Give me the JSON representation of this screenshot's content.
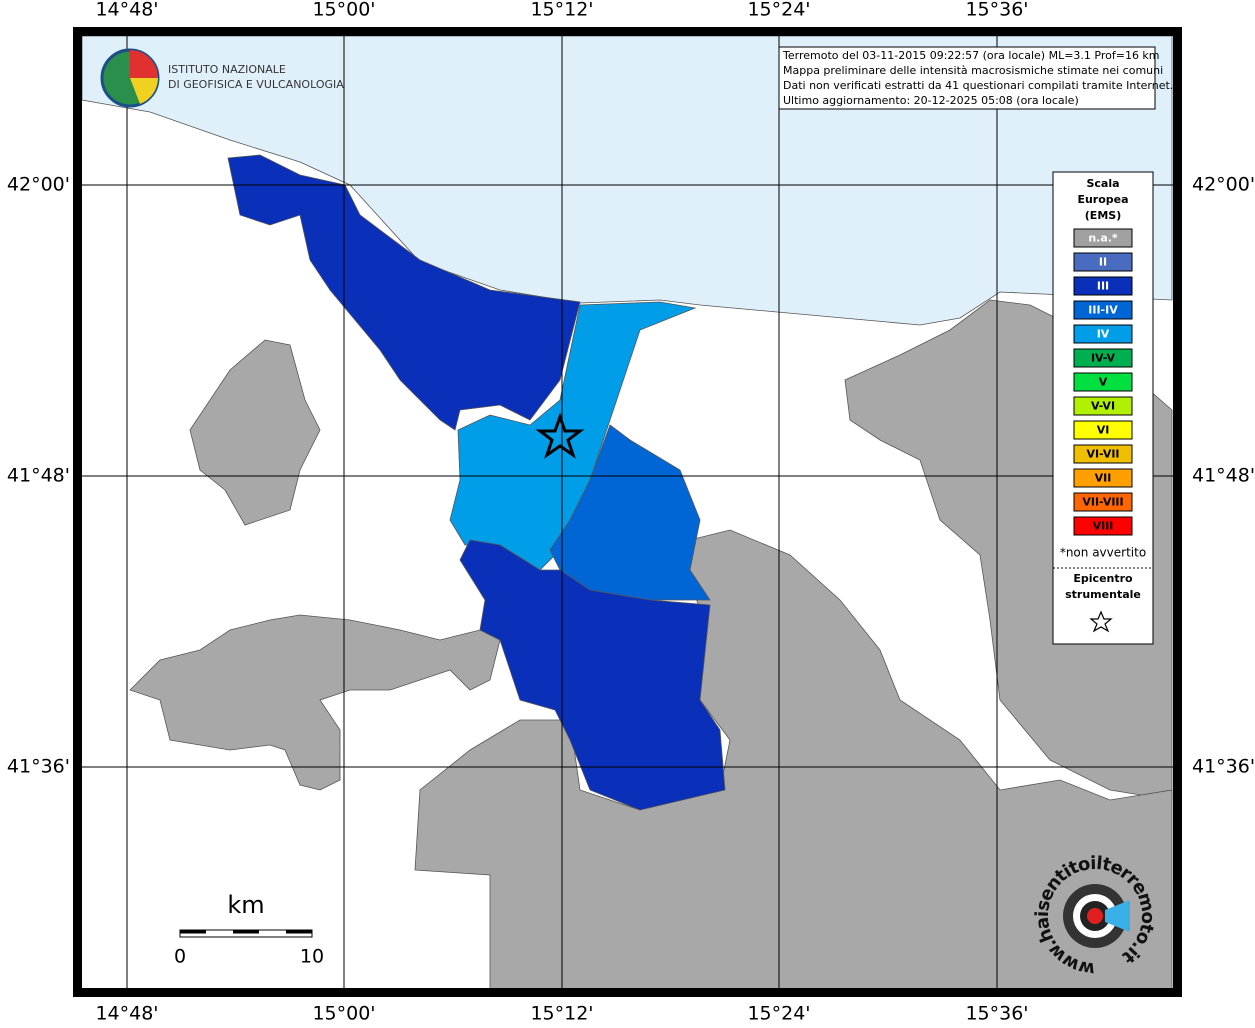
{
  "logo": {
    "line1": "ISTITUTO NAZIONALE",
    "line2": "DI GEOFISICA E VULCANOLOGIA"
  },
  "info": [
    "Terremoto del 03-11-2015 09:22:57 (ora locale) ML=3.1 Prof=16 km",
    "Mappa preliminare delle intensità macrosismiche stimate nei comuni",
    "Dati non verificati estratti da 41 questionari compilati tramite Internet.",
    "Ultimo aggiornamento: 20-12-2025 05:08 (ora locale)"
  ],
  "axes": {
    "longitude": [
      "14°48'",
      "15°00'",
      "15°12'",
      "15°24'",
      "15°36'"
    ],
    "latitude": [
      "42°00'",
      "41°48'",
      "41°36'"
    ]
  },
  "legend": {
    "title": [
      "Scala",
      "Europea",
      "(EMS)"
    ],
    "items": [
      {
        "label": "n.a.*",
        "color": "#a0a0a0"
      },
      {
        "label": "II",
        "color": "#4a6cc0"
      },
      {
        "label": "III",
        "color": "#0a2fb8"
      },
      {
        "label": "III-IV",
        "color": "#0066d6"
      },
      {
        "label": "IV",
        "color": "#009de8"
      },
      {
        "label": "IV-V",
        "color": "#00b050"
      },
      {
        "label": "V",
        "color": "#00e040"
      },
      {
        "label": "V-VI",
        "color": "#b0f000"
      },
      {
        "label": "VI",
        "color": "#ffff00"
      },
      {
        "label": "VI-VII",
        "color": "#f0c000"
      },
      {
        "label": "VII",
        "color": "#ffa000"
      },
      {
        "label": "VII-VIII",
        "color": "#ff6600"
      },
      {
        "label": "VIII",
        "color": "#ff0000"
      }
    ],
    "note": "*non avvertito",
    "epicenter": [
      "Epicentro",
      "strumentale"
    ]
  },
  "scalebar": {
    "unit": "km",
    "start": "0",
    "end": "10"
  },
  "brand": "www.haisentitoilterremoto.it"
}
